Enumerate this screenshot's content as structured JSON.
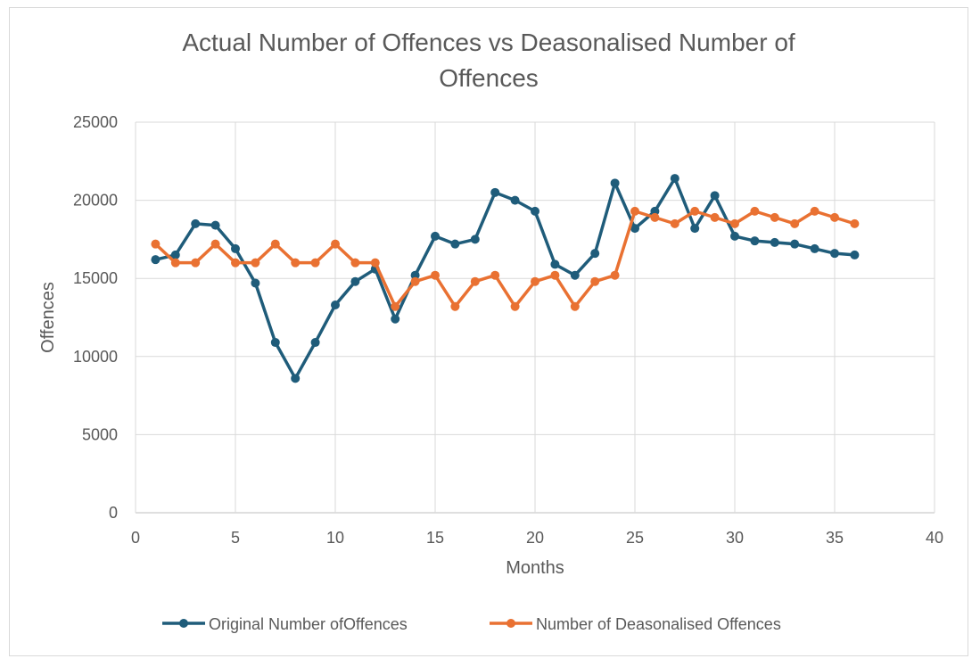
{
  "chart_data": {
    "type": "line",
    "title_lines": [
      "Actual Number of Offences vs Deasonalised Number of",
      "Offences"
    ],
    "xlabel": "Months",
    "ylabel": "Offences",
    "xlim": [
      0,
      40
    ],
    "ylim": [
      0,
      25000
    ],
    "x_ticks": [
      "0",
      "5",
      "10",
      "15",
      "20",
      "25",
      "30",
      "35",
      "40"
    ],
    "y_ticks": [
      "0",
      "5000",
      "10000",
      "15000",
      "20000",
      "25000"
    ],
    "grid": true,
    "legend_position": "bottom",
    "x": [
      1,
      2,
      3,
      4,
      5,
      6,
      7,
      8,
      9,
      10,
      11,
      12,
      13,
      14,
      15,
      16,
      17,
      18,
      19,
      20,
      21,
      22,
      23,
      24,
      25,
      26,
      27,
      28,
      29,
      30,
      31,
      32,
      33,
      34,
      35,
      36
    ],
    "series": [
      {
        "name": "Original Number ofOffences",
        "color": "#1f5c7a",
        "values": [
          16200,
          16500,
          18500,
          18400,
          16900,
          14700,
          10900,
          8600,
          10900,
          13300,
          14800,
          15600,
          12400,
          15200,
          17700,
          17200,
          17500,
          20500,
          20000,
          19300,
          15900,
          15200,
          16600,
          21100,
          18200,
          19300,
          21400,
          18200,
          20300,
          17700,
          17400,
          17300,
          17200,
          16900,
          16600,
          16500
        ]
      },
      {
        "name": "Number of Deasonalised Offences",
        "color": "#e97132",
        "values": [
          17200,
          16000,
          16000,
          17200,
          16000,
          16000,
          17200,
          16000,
          16000,
          17200,
          16000,
          16000,
          13200,
          14800,
          15200,
          13200,
          14800,
          15200,
          13200,
          14800,
          15200,
          13200,
          14800,
          15200,
          19300,
          18900,
          18500,
          19300,
          18900,
          18500,
          19300,
          18900,
          18500,
          19300,
          18900,
          18500
        ]
      }
    ]
  }
}
